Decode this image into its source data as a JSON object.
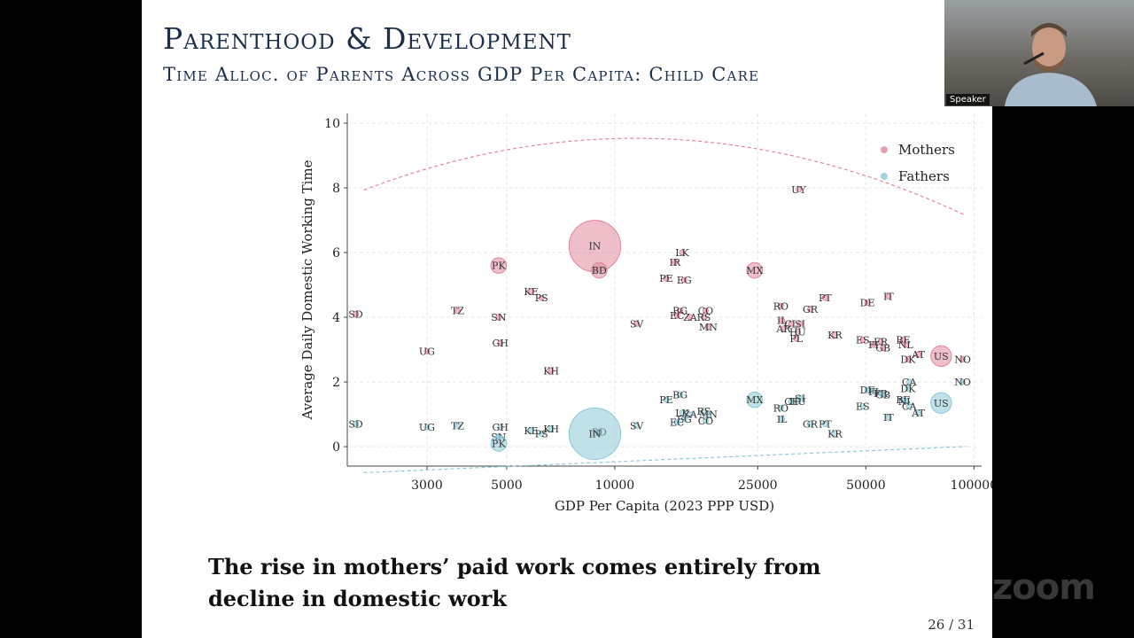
{
  "slide": {
    "title": "Parenthood & Development",
    "subtitle": "Time Alloc. of Parents Across GDP Per Capita: Child Care",
    "takeaway_line1": "The rise in mothers’ paid work comes entirely from",
    "takeaway_line2": "decline in domestic work",
    "page_number": "26 / 31"
  },
  "video": {
    "speaker_label": "Speaker",
    "watermark": "zoom"
  },
  "colors": {
    "mothers": "#e0889c",
    "fathers": "#8cc9d6",
    "grid": "#e6e6e6"
  },
  "chart_data": {
    "type": "scatter",
    "xlabel": "GDP Per Capita (2023 PPP USD)",
    "ylabel": "Average Daily Domestic Working Time",
    "xscale": "log",
    "xlim": [
      1800,
      105000
    ],
    "ylim": [
      -0.6,
      10.3
    ],
    "xticks": [
      {
        "value": 3000,
        "label": "3000"
      },
      {
        "value": 5000,
        "label": "5000"
      },
      {
        "value": 10000,
        "label": "10000"
      },
      {
        "value": 25000,
        "label": "25000"
      },
      {
        "value": 50000,
        "label": "50000"
      },
      {
        "value": 100000,
        "label": "100000"
      }
    ],
    "yticks": [
      0,
      2,
      4,
      6,
      8,
      10
    ],
    "grid": true,
    "legend_position": "top-right",
    "legend": [
      {
        "label": "Mothers",
        "color": "#e0889c"
      },
      {
        "label": "Fathers",
        "color": "#8cc9d6"
      }
    ],
    "fit_lines": [
      {
        "series": "Mothers",
        "coef": [
          -36.7,
          9.9,
          -0.53
        ],
        "x_range": [
          2000,
          95000
        ]
      },
      {
        "series": "Fathers",
        "coef": [
          -2.4,
          0.21,
          0.0
        ],
        "x_range": [
          2000,
          95000
        ]
      }
    ],
    "series": [
      {
        "name": "Mothers",
        "points": [
          {
            "c": "SD",
            "x": 1900,
            "y": 4.1
          },
          {
            "c": "UG",
            "x": 3000,
            "y": 2.95
          },
          {
            "c": "TZ",
            "x": 3650,
            "y": 4.2
          },
          {
            "c": "PK",
            "x": 4750,
            "y": 5.6,
            "s": 3
          },
          {
            "c": "SN",
            "x": 4750,
            "y": 4.0
          },
          {
            "c": "GH",
            "x": 4800,
            "y": 3.2
          },
          {
            "c": "KE",
            "x": 5850,
            "y": 4.8
          },
          {
            "c": "PS",
            "x": 6250,
            "y": 4.6
          },
          {
            "c": "KH",
            "x": 6650,
            "y": 2.35
          },
          {
            "c": "IN",
            "x": 8800,
            "y": 6.2,
            "s": 10
          },
          {
            "c": "BD",
            "x": 9050,
            "y": 5.45,
            "s": 3
          },
          {
            "c": "SV",
            "x": 11500,
            "y": 3.8
          },
          {
            "c": "LK",
            "x": 15400,
            "y": 6.0
          },
          {
            "c": "IR",
            "x": 14700,
            "y": 5.7
          },
          {
            "c": "PE",
            "x": 13900,
            "y": 5.2
          },
          {
            "c": "EG",
            "x": 15600,
            "y": 5.15
          },
          {
            "c": "BG",
            "x": 15200,
            "y": 4.2
          },
          {
            "c": "EC",
            "x": 14900,
            "y": 4.05
          },
          {
            "c": "ZA",
            "x": 16200,
            "y": 4.0
          },
          {
            "c": "CO",
            "x": 17900,
            "y": 4.2
          },
          {
            "c": "RS",
            "x": 17700,
            "y": 4.0
          },
          {
            "c": "MN",
            "x": 18200,
            "y": 3.7
          },
          {
            "c": "MX",
            "x": 24500,
            "y": 5.45,
            "s": 3
          },
          {
            "c": "RO",
            "x": 29000,
            "y": 4.35
          },
          {
            "c": "IL",
            "x": 29200,
            "y": 3.9
          },
          {
            "c": "AR",
            "x": 29500,
            "y": 3.65
          },
          {
            "c": "CL",
            "x": 31000,
            "y": 3.8
          },
          {
            "c": "SI",
            "x": 32800,
            "y": 3.8
          },
          {
            "c": "HU",
            "x": 32300,
            "y": 3.55
          },
          {
            "c": "PL",
            "x": 32000,
            "y": 3.35
          },
          {
            "c": "GR",
            "x": 35000,
            "y": 4.25
          },
          {
            "c": "UY",
            "x": 32500,
            "y": 7.95
          },
          {
            "c": "PT",
            "x": 38500,
            "y": 4.6
          },
          {
            "c": "KR",
            "x": 41000,
            "y": 3.45
          },
          {
            "c": "DE",
            "x": 50500,
            "y": 4.45
          },
          {
            "c": "ES",
            "x": 49000,
            "y": 3.3
          },
          {
            "c": "FI",
            "x": 52500,
            "y": 3.15
          },
          {
            "c": "FR",
            "x": 55000,
            "y": 3.25
          },
          {
            "c": "GB",
            "x": 55800,
            "y": 3.05
          },
          {
            "c": "IT",
            "x": 57800,
            "y": 4.65
          },
          {
            "c": "BE",
            "x": 63500,
            "y": 3.3
          },
          {
            "c": "NL",
            "x": 64500,
            "y": 3.15
          },
          {
            "c": "DK",
            "x": 65500,
            "y": 2.7
          },
          {
            "c": "AT",
            "x": 70000,
            "y": 2.85
          },
          {
            "c": "US",
            "x": 81000,
            "y": 2.8,
            "s": 4
          },
          {
            "c": "NO",
            "x": 93000,
            "y": 2.7
          }
        ]
      },
      {
        "name": "Fathers",
        "points": [
          {
            "c": "SD",
            "x": 1900,
            "y": 0.7
          },
          {
            "c": "UG",
            "x": 3000,
            "y": 0.6
          },
          {
            "c": "TZ",
            "x": 3650,
            "y": 0.65
          },
          {
            "c": "GH",
            "x": 4800,
            "y": 0.6
          },
          {
            "c": "SN",
            "x": 4750,
            "y": 0.3
          },
          {
            "c": "PK",
            "x": 4750,
            "y": 0.1,
            "s": 3
          },
          {
            "c": "KE",
            "x": 5850,
            "y": 0.5
          },
          {
            "c": "PS",
            "x": 6250,
            "y": 0.4
          },
          {
            "c": "KH",
            "x": 6650,
            "y": 0.55
          },
          {
            "c": "BD",
            "x": 9050,
            "y": 0.45
          },
          {
            "c": "IN",
            "x": 8800,
            "y": 0.4,
            "s": 10
          },
          {
            "c": "SV",
            "x": 11500,
            "y": 0.65
          },
          {
            "c": "PE",
            "x": 13900,
            "y": 1.45
          },
          {
            "c": "BG",
            "x": 15200,
            "y": 1.6
          },
          {
            "c": "LK",
            "x": 15400,
            "y": 1.05
          },
          {
            "c": "ZA",
            "x": 16200,
            "y": 1.0
          },
          {
            "c": "EG",
            "x": 15600,
            "y": 0.85
          },
          {
            "c": "EC",
            "x": 14900,
            "y": 0.75
          },
          {
            "c": "RS",
            "x": 17700,
            "y": 1.1
          },
          {
            "c": "MN",
            "x": 18200,
            "y": 1.0
          },
          {
            "c": "CO",
            "x": 17900,
            "y": 0.8
          },
          {
            "c": "MX",
            "x": 24500,
            "y": 1.45,
            "s": 3
          },
          {
            "c": "RO",
            "x": 29000,
            "y": 1.2
          },
          {
            "c": "CL",
            "x": 31000,
            "y": 1.4
          },
          {
            "c": "HU",
            "x": 32300,
            "y": 1.4
          },
          {
            "c": "SI",
            "x": 32800,
            "y": 1.5
          },
          {
            "c": "IL",
            "x": 29200,
            "y": 0.85
          },
          {
            "c": "GR",
            "x": 35000,
            "y": 0.7
          },
          {
            "c": "PT",
            "x": 38500,
            "y": 0.7
          },
          {
            "c": "KR",
            "x": 41000,
            "y": 0.4
          },
          {
            "c": "DE",
            "x": 50500,
            "y": 1.75
          },
          {
            "c": "FI",
            "x": 52500,
            "y": 1.7
          },
          {
            "c": "FR",
            "x": 55000,
            "y": 1.65
          },
          {
            "c": "GB",
            "x": 55800,
            "y": 1.6
          },
          {
            "c": "ES",
            "x": 49000,
            "y": 1.25
          },
          {
            "c": "IT",
            "x": 57800,
            "y": 0.9
          },
          {
            "c": "CA",
            "x": 66000,
            "y": 2.0
          },
          {
            "c": "DK",
            "x": 65500,
            "y": 1.8
          },
          {
            "c": "BE",
            "x": 63500,
            "y": 1.45
          },
          {
            "c": "NL",
            "x": 64500,
            "y": 1.4
          },
          {
            "c": "CA",
            "x": 66000,
            "y": 1.25
          },
          {
            "c": "AT",
            "x": 70000,
            "y": 1.05
          },
          {
            "c": "US",
            "x": 81000,
            "y": 1.35,
            "s": 4
          },
          {
            "c": "NO",
            "x": 93000,
            "y": 2.0
          }
        ]
      }
    ]
  }
}
